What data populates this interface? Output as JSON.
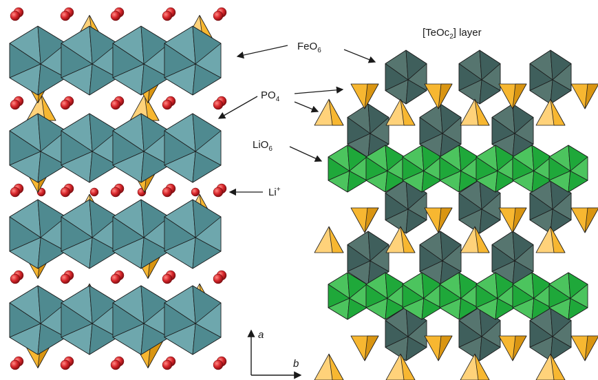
{
  "labels": {
    "feo6": {
      "main": "FeO",
      "sub": "6"
    },
    "po4": {
      "main": "PO",
      "sub": "4"
    },
    "lio6": {
      "main": "LiO",
      "sub": "6"
    },
    "li": {
      "main": "Li",
      "sup": "+"
    },
    "teoc2": {
      "pre": "[TeOc",
      "sub": "2",
      "post": "] layer"
    }
  },
  "axes": {
    "a": "a",
    "b": "b"
  },
  "colors": {
    "feo6_left": "#4f8a90",
    "feo6_left_light": "#6ea7ad",
    "feo6_right": "#3f5f5c",
    "feo6_right_light": "#56756f",
    "po4": "#f7b731",
    "po4_light": "#ffd27a",
    "po4_dark": "#d99512",
    "lio6": "#1fa83a",
    "lio6_light": "#4cc45e",
    "li_atom": "#d7262b",
    "outline": "#1b1b1b"
  }
}
